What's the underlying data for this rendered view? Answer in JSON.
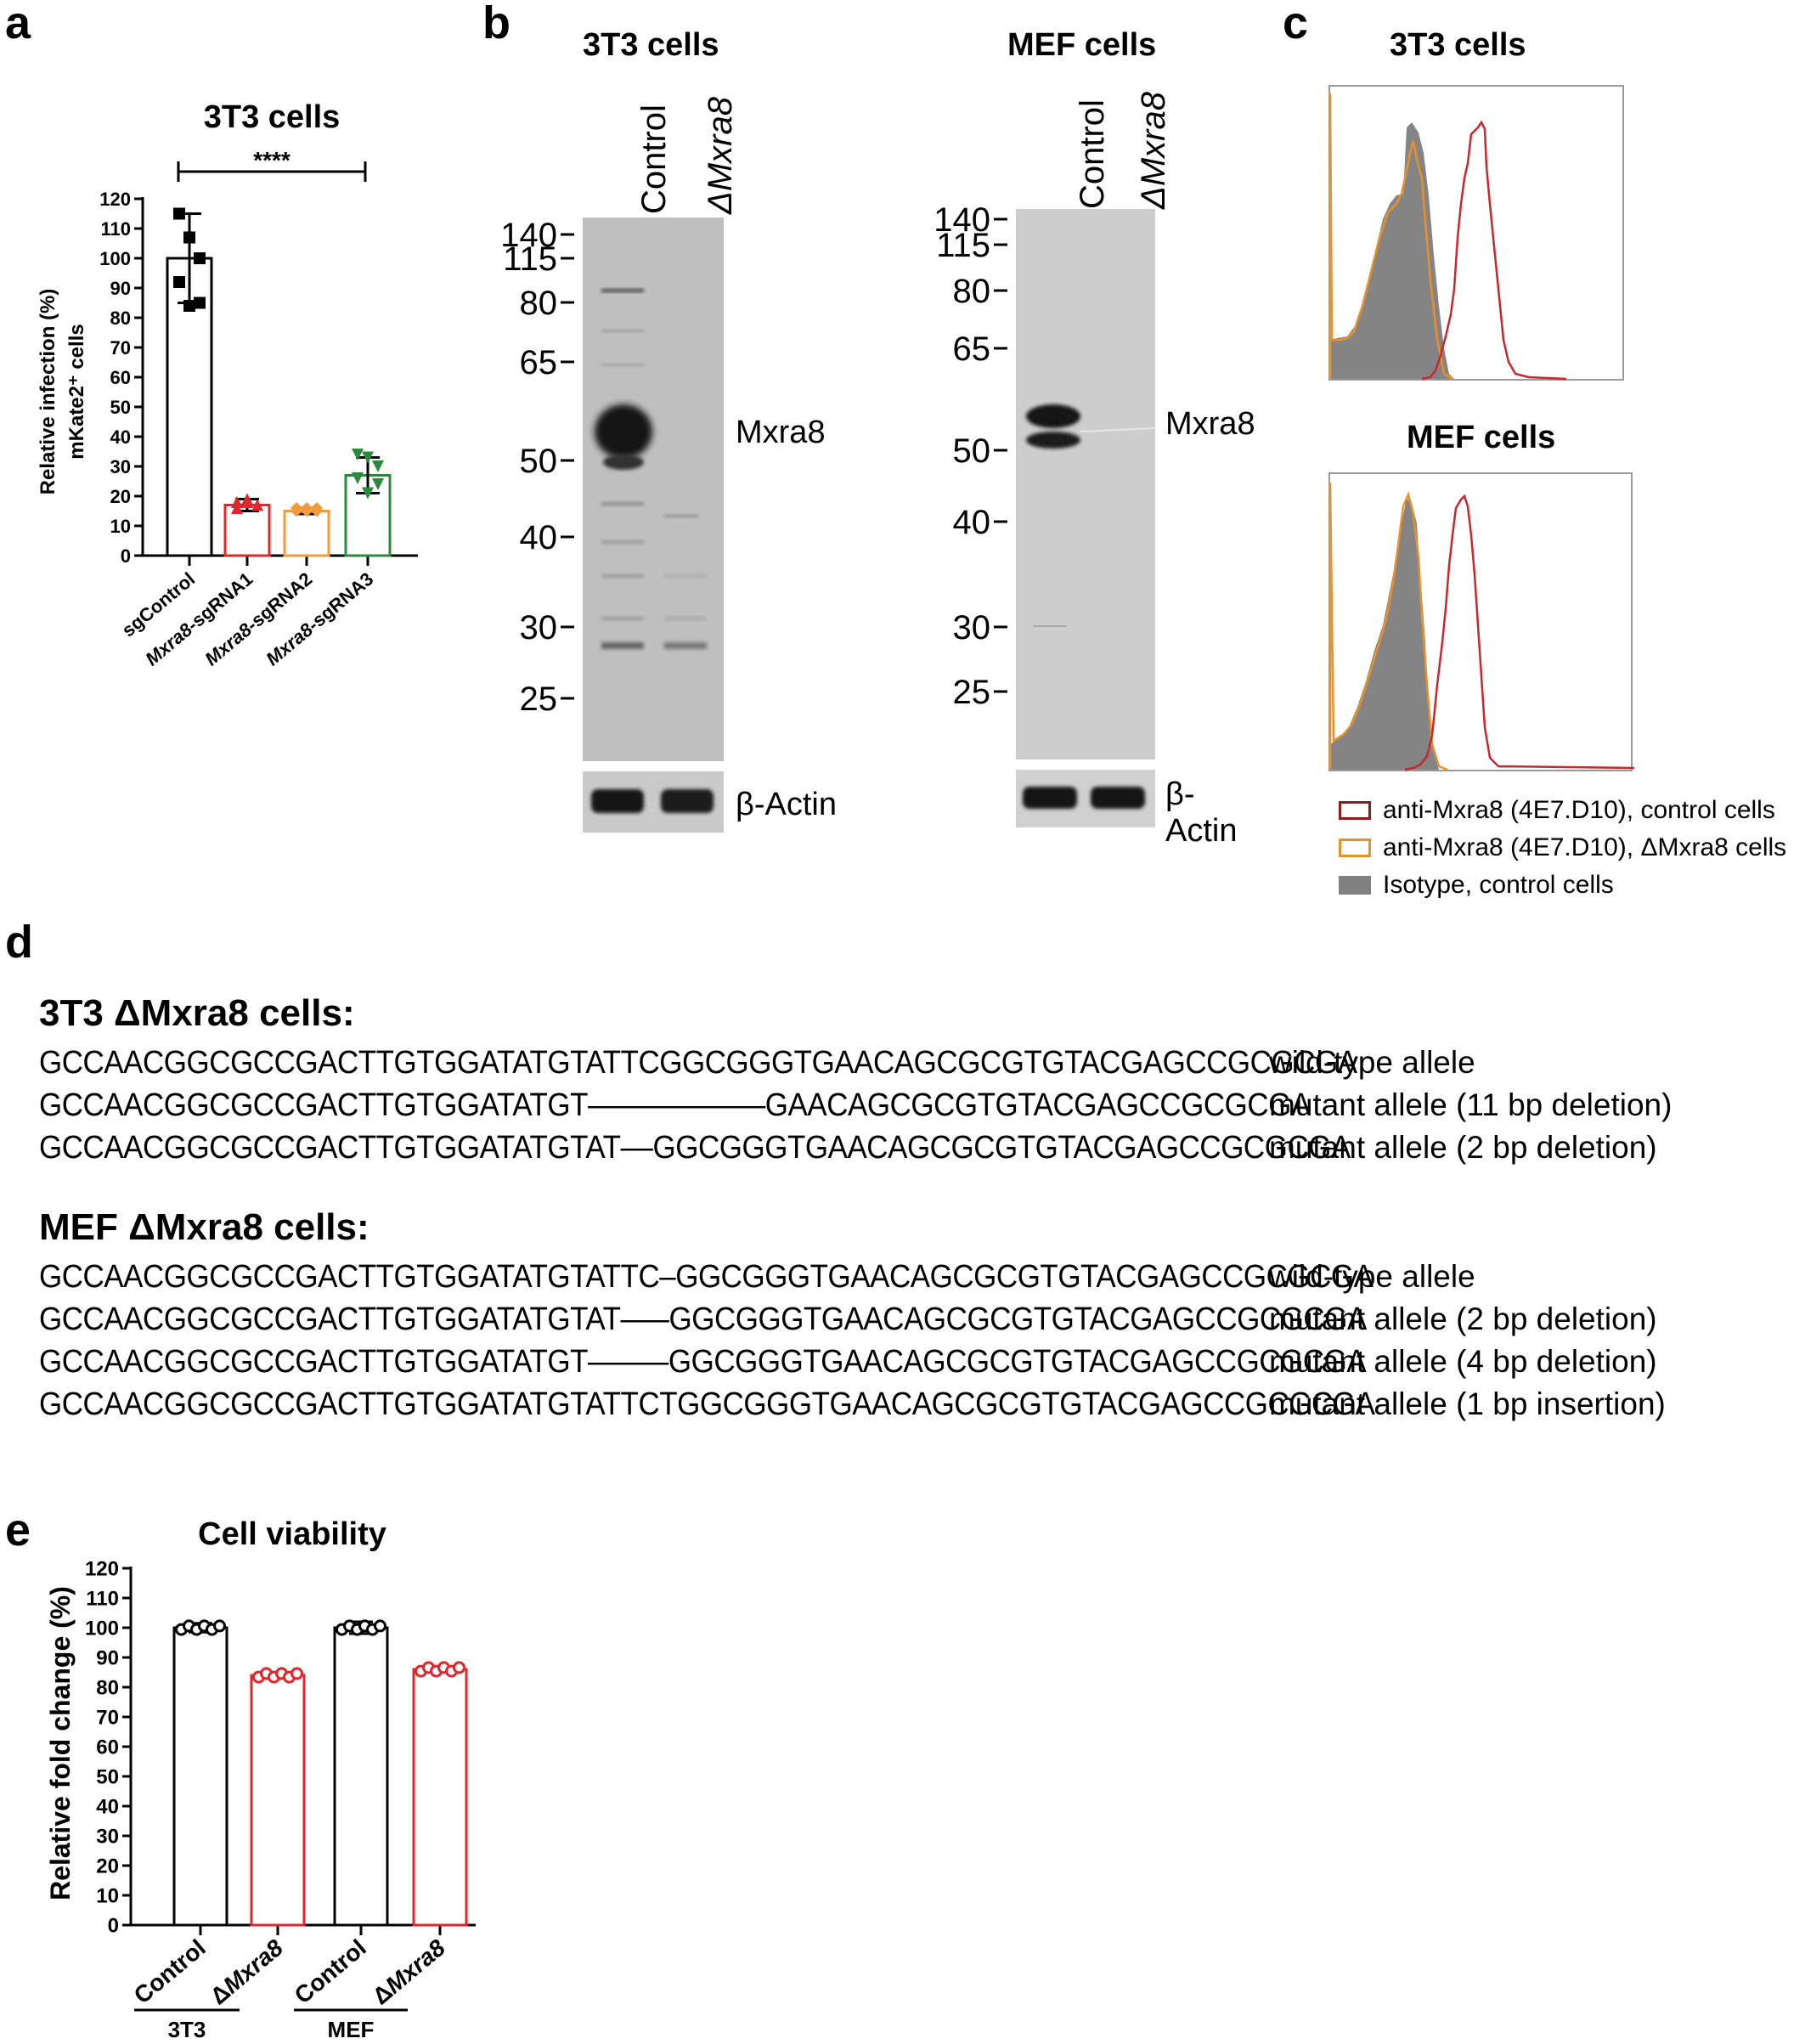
{
  "panels": {
    "a": "a",
    "b": "b",
    "c": "c",
    "d": "d",
    "e": "e"
  },
  "panel_a": {
    "title": "3T3 cells",
    "ylabel_line1": "Relative infection (%)",
    "ylabel_line2": "mKate2⁺ cells",
    "significance": "****"
  },
  "panel_b": {
    "blots": [
      {
        "title": "3T3 cells",
        "lanes": [
          "Control",
          "ΔMxra8"
        ],
        "band_label": "Mxra8",
        "loading_label": "β-Actin"
      },
      {
        "title": "MEF cells",
        "lanes": [
          "Control",
          "ΔMxra8"
        ],
        "band_label": "Mxra8",
        "loading_label": "β-Actin"
      }
    ],
    "markers": [
      "140",
      "115",
      "80",
      "65",
      "50",
      "40",
      "30",
      "25"
    ]
  },
  "panel_c": {
    "titles": [
      "3T3 cells",
      "MEF cells"
    ],
    "legend": [
      {
        "label": "anti-Mxra8 (4E7.D10), control cells",
        "color": "#b2282c",
        "style": "outline-dark"
      },
      {
        "label": "anti-Mxra8 (4E7.D10), ΔMxra8 cells",
        "color": "#e6912c",
        "style": "outline"
      },
      {
        "label": "Isotype, control cells",
        "color": "#808080",
        "style": "filled"
      }
    ],
    "colors": {
      "control": "#c8282d",
      "delta": "#e6912c",
      "isotype": "#808080"
    }
  },
  "panel_d": {
    "groups": [
      {
        "title": "3T3 ΔMxra8 cells:",
        "rows": [
          {
            "seq": "GCCAACGGCGCCGACTTGTGGATATGTATTCGGCGGGTGAACAGCGCGTGTACGAGCCGCGCGA",
            "label": "wild-type allele"
          },
          {
            "seq": "GCCAACGGCGCCGACTTGTGGATATGT–––––––––––GAACAGCGCGTGTACGAGCCGCGCGA",
            "label": "mutant allele (11 bp deletion)"
          },
          {
            "seq": "GCCAACGGCGCCGACTTGTGGATATGTAT––GGCGGGTGAACAGCGCGTGTACGAGCCGCGCGA",
            "label": "mutant allele (2 bp deletion)"
          }
        ]
      },
      {
        "title": "MEF ΔMxra8 cells:",
        "rows": [
          {
            "seq": "GCCAACGGCGCCGACTTGTGGATATGTATTC–GGCGGGTGAACAGCGCGTGTACGAGCCGCGCGA",
            "label": "wild-type allele"
          },
          {
            "seq": "GCCAACGGCGCCGACTTGTGGATATGTAT–––GGCGGGTGAACAGCGCGTGTACGAGCCGCGCGA",
            "label": "mutant allele (2 bp deletion)"
          },
          {
            "seq": "GCCAACGGCGCCGACTTGTGGATATGT–––––GGCGGGTGAACAGCGCGTGTACGAGCCGCGCGA",
            "label": "mutant allele (4 bp deletion)"
          },
          {
            "seq": "GCCAACGGCGCCGACTTGTGGATATGTATTCTGGCGGGTGAACAGCGCGTGTACGAGCCGCGCGA",
            "label": "mutant allele (1 bp insertion)"
          }
        ]
      }
    ]
  },
  "panel_e": {
    "group_labels": [
      "3T3",
      "MEF"
    ]
  },
  "chart_data": [
    {
      "panel": "a",
      "type": "bar",
      "title": "3T3 cells",
      "ylabel": "Relative infection (%) mKate2⁺ cells",
      "categories": [
        "sgControl",
        "Mxra8-sgRNA1",
        "Mxra8-sgRNA2",
        "Mxra8-sgRNA3"
      ],
      "values": [
        100,
        17,
        15,
        27
      ],
      "errors": [
        15,
        2,
        1,
        6
      ],
      "points": [
        [
          115,
          107,
          100,
          92,
          84,
          85
        ],
        [
          18,
          19,
          17,
          16,
          18,
          17
        ],
        [
          16,
          16,
          15,
          15,
          15,
          16
        ],
        [
          34,
          33,
          30,
          26,
          21,
          24
        ]
      ],
      "bar_colors": [
        "#000000",
        "#e0272b",
        "#f39a3a",
        "#2b8a3e"
      ],
      "ylim": [
        0,
        120
      ],
      "yticks": [
        0,
        10,
        20,
        30,
        40,
        50,
        60,
        70,
        80,
        90,
        100,
        110,
        120
      ],
      "annotation": "****"
    },
    {
      "panel": "e",
      "type": "bar",
      "title": "Cell viability",
      "ylabel": "Relative fold change (%)",
      "categories": [
        "Control",
        "ΔMxra8",
        "Control",
        "ΔMxra8"
      ],
      "groups": [
        "3T3",
        "MEF"
      ],
      "values": [
        100,
        84,
        100,
        86
      ],
      "errors": [
        1.5,
        0.8,
        2,
        0.8
      ],
      "bar_colors": [
        "#000000",
        "#e0272b",
        "#000000",
        "#e0272b"
      ],
      "ylim": [
        0,
        120
      ],
      "yticks": [
        0,
        10,
        20,
        30,
        40,
        50,
        60,
        70,
        80,
        90,
        100,
        110,
        120
      ]
    }
  ]
}
